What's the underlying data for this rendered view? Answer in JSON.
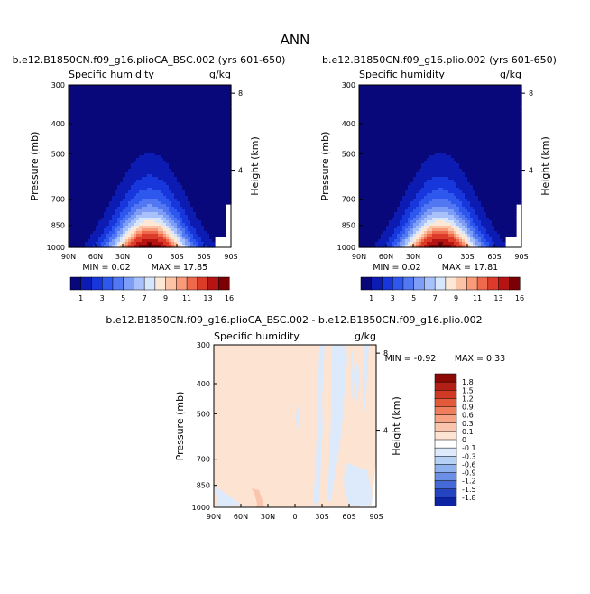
{
  "page": {
    "title": "ANN"
  },
  "panels": [
    {
      "id": "left",
      "case": "b.e12.B1850CN.f09_g16.plioCA_BSC.002 (yrs 601-650)",
      "field": "Specific humidity",
      "units": "g/kg",
      "ylabel": "Pressure (mb)",
      "ylabel_right": "Height (km)",
      "min_label": "MIN = 0.02",
      "max_label": "MAX = 17.85"
    },
    {
      "id": "right",
      "case": "b.e12.B1850CN.f09_g16.plio.002 (yrs 601-650)",
      "field": "Specific humidity",
      "units": "g/kg",
      "ylabel": "Pressure (mb)",
      "ylabel_right": "Height (km)",
      "min_label": "MIN = 0.02",
      "max_label": "MAX = 17.81"
    },
    {
      "id": "diff",
      "case": "b.e12.B1850CN.f09_g16.plioCA_BSC.002 - b.e12.B1850CN.f09_g16.plio.002",
      "field": "Specific humidity",
      "units": "g/kg",
      "ylabel": "Pressure (mb)",
      "ylabel_right": "Height (km)",
      "min_label": "MIN = -0.92",
      "max_label": "MAX = 0.33"
    }
  ],
  "chart_data": [
    {
      "type": "heatmap",
      "title": "b.e12.B1850CN.f09_g16.plioCA_BSC.002 (yrs 601-650)",
      "subtitle": "Specific humidity",
      "units": "g/kg",
      "x_ticks": [
        "90N",
        "60N",
        "30N",
        "0",
        "30S",
        "60S",
        "90S"
      ],
      "xlim": [
        90,
        -90
      ],
      "y_ticks": [
        300,
        400,
        500,
        700,
        850,
        1000
      ],
      "ylim": [
        1000,
        300
      ],
      "y_scale": "log",
      "ylabel": "Pressure (mb)",
      "ylabel_right": "Height (km)",
      "right_ticks": [
        4,
        8
      ],
      "min": 0.02,
      "max": 17.85,
      "field_model": {
        "peak": 17.85,
        "peak_lat": 0
      },
      "colorbar": {
        "levels": [
          1,
          2,
          3,
          4,
          5,
          6,
          7,
          8,
          9,
          10,
          11,
          12,
          14,
          16
        ],
        "labels": [
          "1",
          "3",
          "5",
          "7",
          "9",
          "11",
          "13",
          "16"
        ],
        "colors": [
          "#08087a",
          "#0c1cb2",
          "#1736dc",
          "#2e57ee",
          "#5177f3",
          "#7d9df6",
          "#a8c1fa",
          "#d6e6fd",
          "#fde8d5",
          "#fcc4a6",
          "#f99b78",
          "#ef6a4d",
          "#dc3b2a",
          "#b51412",
          "#7b0005"
        ]
      }
    },
    {
      "type": "heatmap",
      "title": "b.e12.B1850CN.f09_g16.plio.002 (yrs 601-650)",
      "subtitle": "Specific humidity",
      "units": "g/kg",
      "x_ticks": [
        "90N",
        "60N",
        "30N",
        "0",
        "30S",
        "60S",
        "90S"
      ],
      "xlim": [
        90,
        -90
      ],
      "y_ticks": [
        300,
        400,
        500,
        700,
        850,
        1000
      ],
      "ylim": [
        1000,
        300
      ],
      "y_scale": "log",
      "ylabel": "Pressure (mb)",
      "ylabel_right": "Height (km)",
      "right_ticks": [
        4,
        8
      ],
      "min": 0.02,
      "max": 17.81,
      "field_model": {
        "peak": 17.81,
        "peak_lat": 0
      },
      "colorbar": {
        "levels": [
          1,
          2,
          3,
          4,
          5,
          6,
          7,
          8,
          9,
          10,
          11,
          12,
          14,
          16
        ],
        "labels": [
          "1",
          "3",
          "5",
          "7",
          "9",
          "11",
          "13",
          "16"
        ],
        "colors": [
          "#08087a",
          "#0c1cb2",
          "#1736dc",
          "#2e57ee",
          "#5177f3",
          "#7d9df6",
          "#a8c1fa",
          "#d6e6fd",
          "#fde8d5",
          "#fcc4a6",
          "#f99b78",
          "#ef6a4d",
          "#dc3b2a",
          "#b51412",
          "#7b0005"
        ]
      }
    },
    {
      "type": "heatmap",
      "title": "b.e12.B1850CN.f09_g16.plioCA_BSC.002 - b.e12.B1850CN.f09_g16.plio.002",
      "subtitle": "Specific humidity",
      "units": "g/kg",
      "x_ticks": [
        "90N",
        "60N",
        "30N",
        "0",
        "30S",
        "60S",
        "90S"
      ],
      "xlim": [
        90,
        -90
      ],
      "y_ticks": [
        300,
        400,
        500,
        700,
        850,
        1000
      ],
      "ylim": [
        1000,
        300
      ],
      "y_scale": "log",
      "ylabel": "Pressure (mb)",
      "ylabel_right": "Height (km)",
      "right_ticks": [
        4,
        8
      ],
      "min": -0.92,
      "max": 0.33,
      "colorbar": {
        "levels": [
          -1.8,
          -1.5,
          -1.2,
          -0.9,
          -0.6,
          -0.3,
          -0.1,
          0,
          0.1,
          0.3,
          0.6,
          0.9,
          1.2,
          1.5,
          1.8
        ],
        "labels": [
          "1.8",
          "1.5",
          "1.2",
          "0.9",
          "0.6",
          "0.3",
          "0.1",
          "0",
          "-0.1",
          "-0.3",
          "-0.6",
          "-0.9",
          "-1.2",
          "-1.5",
          "-1.8"
        ],
        "colors": [
          "#8b0a06",
          "#b21f14",
          "#d03a24",
          "#e35a3a",
          "#ef7f5c",
          "#f6a385",
          "#fac5ad",
          "#fde3d2",
          "#ffffff",
          "#dceafb",
          "#b7d1f5",
          "#8fb2ee",
          "#6a8fe4",
          "#4569d7",
          "#2544c2",
          "#0c23a3"
        ],
        "observed_regions": [
          {
            "value_class": "0 to 0.1",
            "color": "#fde3d2",
            "description": "dominant"
          },
          {
            "value_class": "0 to -0.1",
            "color": "#dceafb",
            "description": "southern hemisphere columns"
          },
          {
            "value_class": "0.1 to 0.3",
            "color": "#fac5ad",
            "description": "small patch near 45N, 900-1000 mb"
          }
        ]
      }
    }
  ]
}
